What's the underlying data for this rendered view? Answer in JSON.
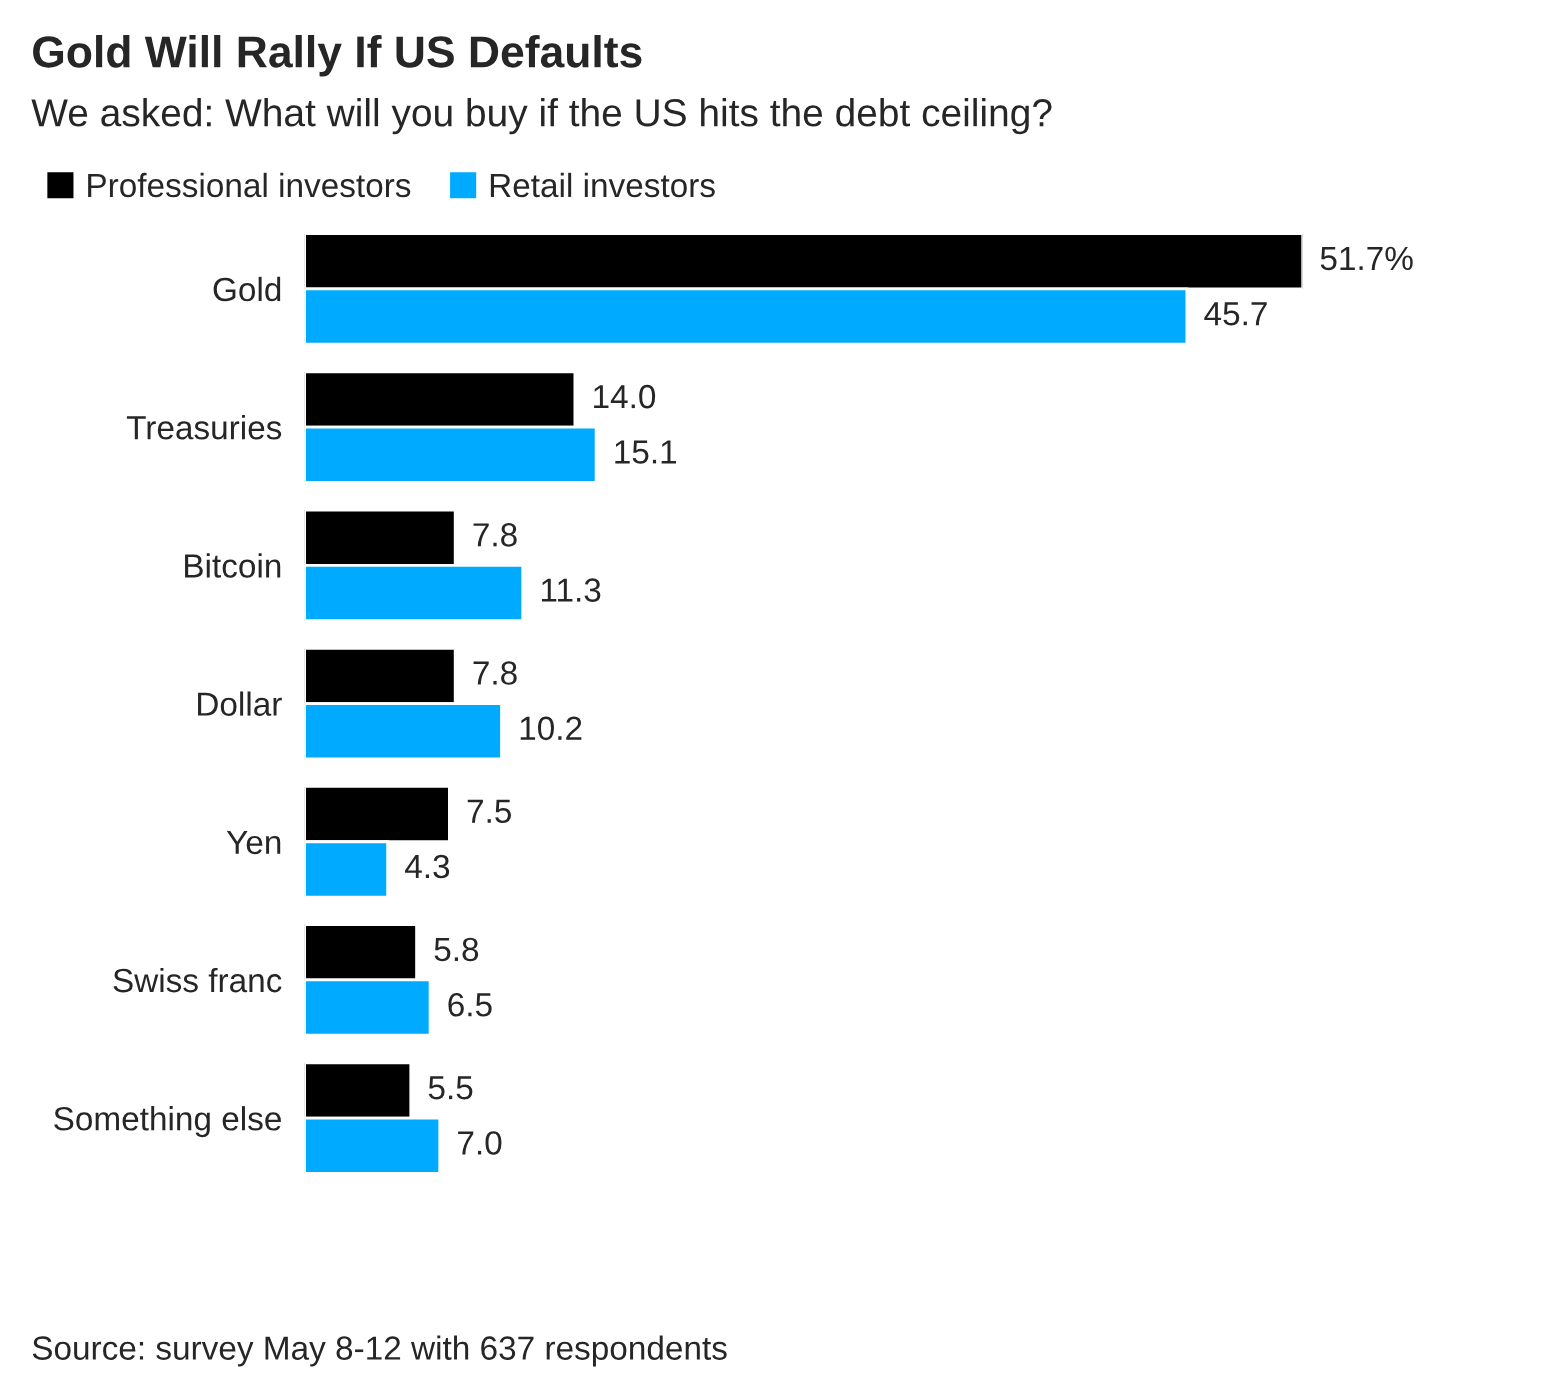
{
  "chart_data": {
    "type": "bar",
    "orientation": "horizontal",
    "title": "Gold Will Rally If US Defaults",
    "subtitle": "We asked: What will you buy if the US hits the debt ceiling?",
    "categories": [
      "Gold",
      "Treasuries",
      "Bitcoin",
      "Dollar",
      "Yen",
      "Swiss franc",
      "Something else"
    ],
    "series": [
      {
        "name": "Professional investors",
        "color": "#000000",
        "values": [
          51.7,
          14.0,
          7.8,
          7.8,
          7.5,
          5.8,
          5.5
        ],
        "value_labels": [
          "51.7%",
          "14.0",
          "7.8",
          "7.8",
          "7.5",
          "5.8",
          "5.5"
        ]
      },
      {
        "name": "Retail investors",
        "color": "#00aaff",
        "values": [
          45.7,
          15.1,
          11.3,
          10.2,
          4.3,
          6.5,
          7.0
        ],
        "value_labels": [
          "45.7",
          "15.1",
          "11.3",
          "10.2",
          "4.3",
          "6.5",
          "7.0"
        ]
      }
    ],
    "legend": "top left",
    "grid": false,
    "tick_labels": "y",
    "annotations": [
      "Source: survey May 8-12 with 637 respondents"
    ]
  }
}
